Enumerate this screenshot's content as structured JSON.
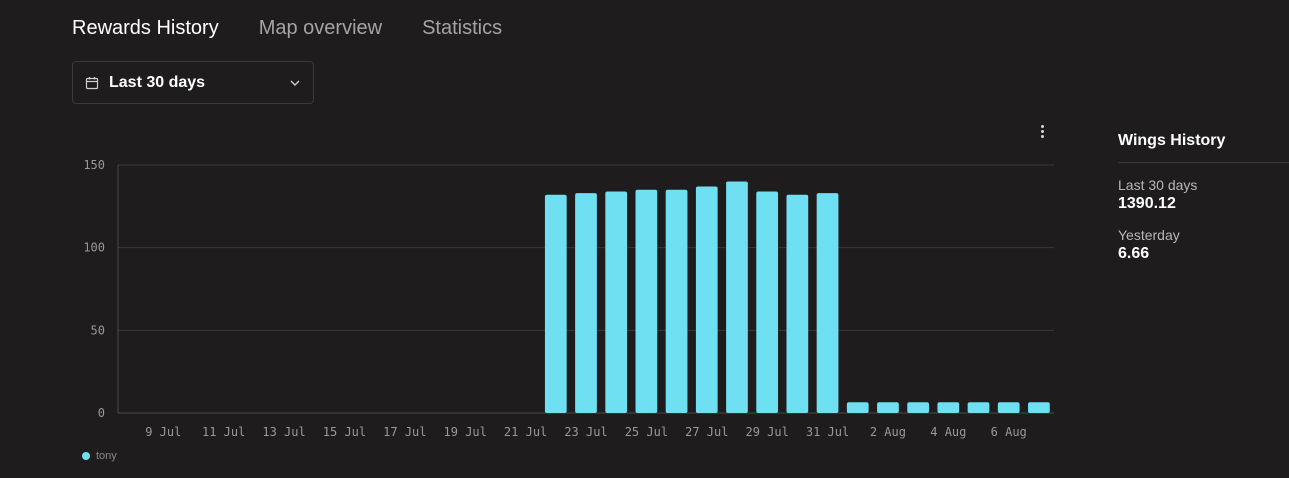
{
  "tabs": [
    "Rewards History",
    "Map overview",
    "Statistics"
  ],
  "range_select": {
    "label": "Last 30 days",
    "icon": "calendar-icon"
  },
  "side_panel": {
    "title": "Wings History",
    "stats": [
      {
        "label": "Last 30 days",
        "value": "1390.12"
      },
      {
        "label": "Yesterday",
        "value": "6.66"
      }
    ]
  },
  "chart_data": {
    "type": "bar",
    "categories": [
      "8 Jul",
      "9 Jul",
      "10 Jul",
      "11 Jul",
      "12 Jul",
      "13 Jul",
      "14 Jul",
      "15 Jul",
      "16 Jul",
      "17 Jul",
      "18 Jul",
      "19 Jul",
      "20 Jul",
      "21 Jul",
      "22 Jul",
      "23 Jul",
      "24 Jul",
      "25 Jul",
      "26 Jul",
      "27 Jul",
      "28 Jul",
      "29 Jul",
      "30 Jul",
      "31 Jul",
      "1 Aug",
      "2 Aug",
      "3 Aug",
      "4 Aug",
      "5 Aug",
      "6 Aug",
      "7 Aug"
    ],
    "x_tick_labels": [
      "9 Jul",
      "11 Jul",
      "13 Jul",
      "15 Jul",
      "17 Jul",
      "19 Jul",
      "21 Jul",
      "23 Jul",
      "25 Jul",
      "27 Jul",
      "29 Jul",
      "31 Jul",
      "2 Aug",
      "4 Aug",
      "6 Aug"
    ],
    "series": [
      {
        "name": "tony",
        "color": "#6fe0f2",
        "values": [
          0,
          0,
          0,
          0,
          0,
          0,
          0,
          0,
          0,
          0,
          0,
          0,
          0,
          0,
          132,
          133,
          134,
          135,
          135,
          137,
          140,
          134,
          132,
          133,
          6.5,
          6.5,
          6.5,
          6.5,
          6.5,
          6.5,
          6.5
        ]
      }
    ],
    "ylim": [
      0,
      150
    ],
    "y_ticks": [
      0,
      50,
      100,
      150
    ],
    "grid": true,
    "legend": "bottom-left"
  }
}
